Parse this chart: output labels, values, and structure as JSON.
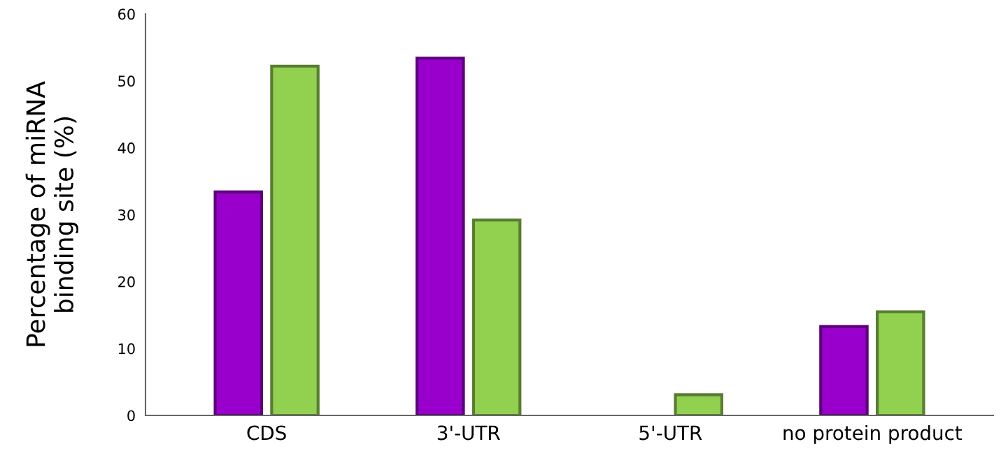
{
  "chart_data": {
    "type": "bar",
    "ylabel": "Percentage of miRNA\nbinding site (%)",
    "categories": [
      "CDS",
      "3'-UTR",
      "5'-UTR",
      "no protein product"
    ],
    "series": [
      {
        "color": "#9900cc",
        "values": [
          33.4,
          53.4,
          0,
          13.3
        ]
      },
      {
        "color": "#92d050",
        "values": [
          52.2,
          29.2,
          3.1,
          15.5
        ]
      }
    ],
    "ylim": [
      0,
      60
    ],
    "yticks": [
      0,
      10,
      20,
      30,
      40,
      50,
      60
    ],
    "grid": false,
    "legend": false
  }
}
